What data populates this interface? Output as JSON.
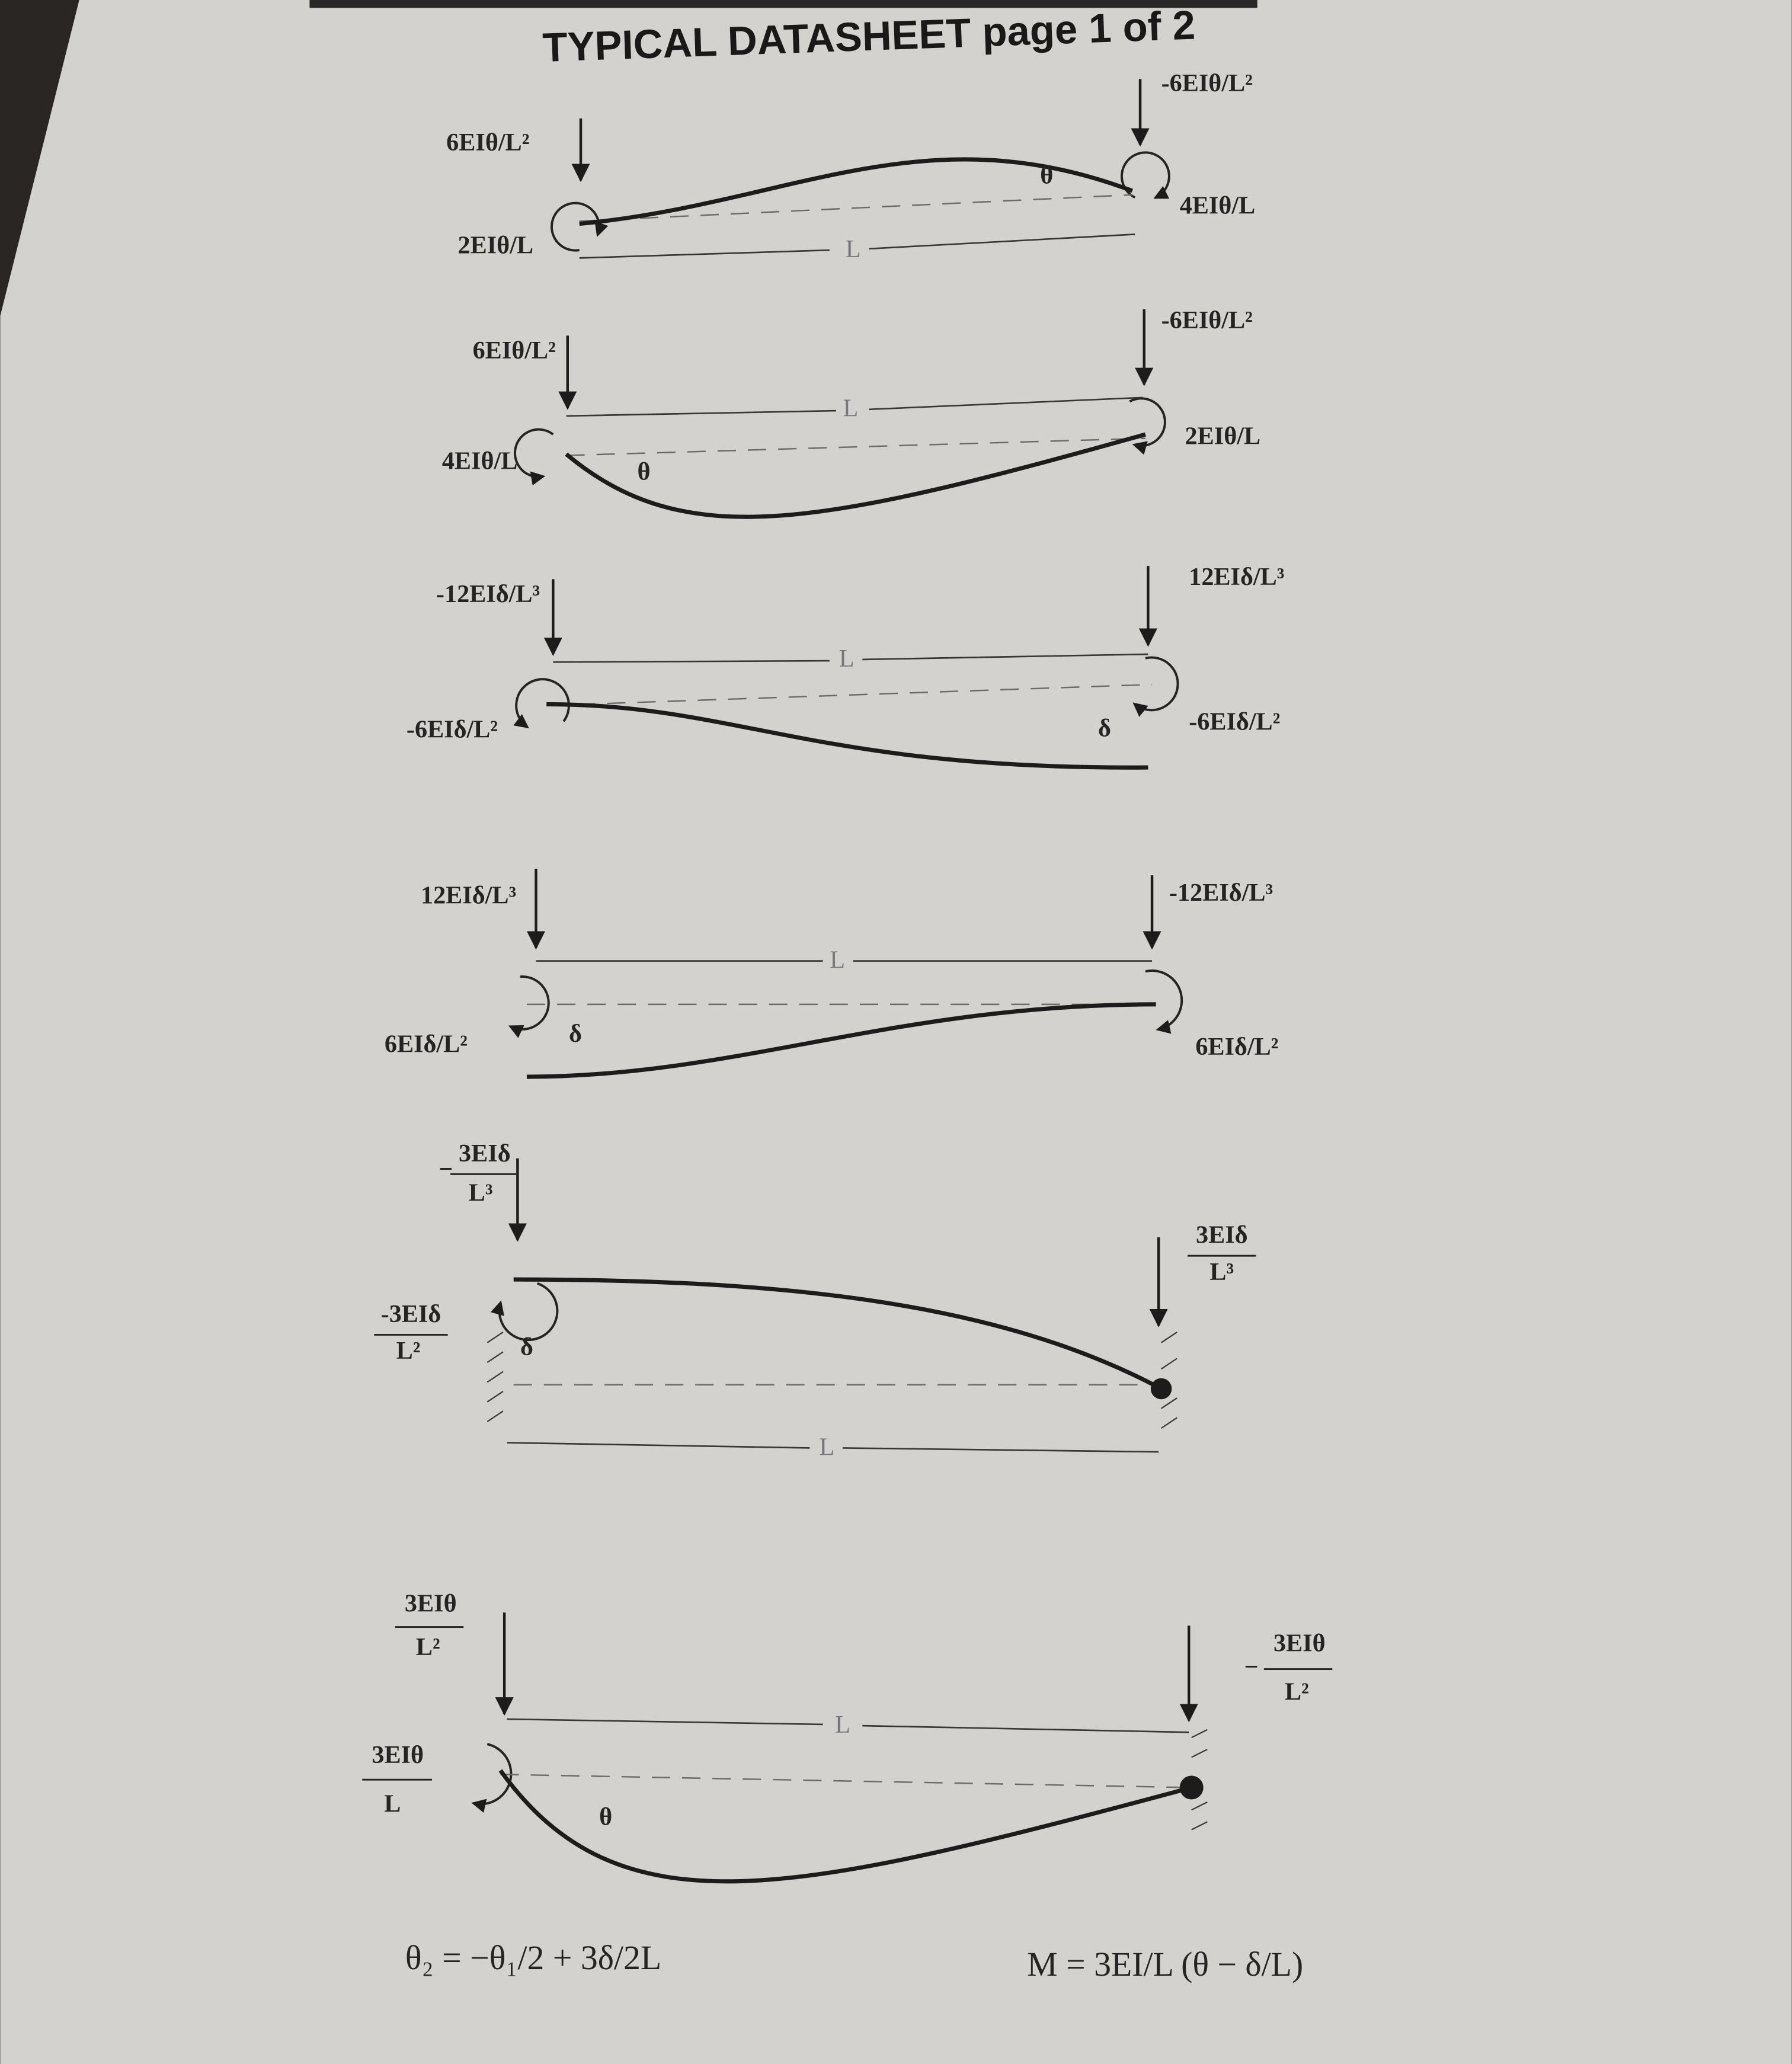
{
  "title": "TYPICAL DATASHEET page 1 of 2",
  "cases": [
    {
      "left_force": "6EIθ/L²",
      "left_moment": "2EIθ/L",
      "right_force": "-6EIθ/L²",
      "right_moment": "4EIθ/L",
      "rotation": "θ",
      "span": "L"
    },
    {
      "left_force": "6EIθ/L²",
      "left_moment": "4EIθ/L",
      "right_force": "-6EIθ/L²",
      "right_moment": "2EIθ/L",
      "rotation": "θ",
      "span": "L"
    },
    {
      "left_force": "-12EIδ/L³",
      "left_moment": "-6EIδ/L²",
      "right_force": "12EIδ/L³",
      "right_moment": "-6EIδ/L²",
      "deflection": "δ",
      "span": "L"
    },
    {
      "left_force": "12EIδ/L³",
      "left_moment": "6EIδ/L²",
      "right_force": "-12EIδ/L³",
      "right_moment": "6EIδ/L²",
      "deflection": "δ",
      "span": "L"
    },
    {
      "left_force": {
        "sign": "−",
        "numerator": "3EIδ",
        "denominator": "L³"
      },
      "left_moment": {
        "numerator": "-3EIδ",
        "denominator": "L²"
      },
      "right_force": {
        "numerator": "3EIδ",
        "denominator": "L³"
      },
      "deflection": "δ",
      "span": "L"
    },
    {
      "left_force": {
        "numerator": "3EIθ",
        "denominator": "L²"
      },
      "left_moment": {
        "numerator": "3EIθ",
        "denominator": "L"
      },
      "right_force": {
        "sign": "−",
        "numerator": "3EIθ",
        "denominator": "L²"
      },
      "rotation": "θ",
      "span": "L"
    }
  ],
  "formulas": [
    "θ₂ = −θ₁/2 + 3δ/2L",
    "M = 3EI/L (θ − δ/L)"
  ]
}
